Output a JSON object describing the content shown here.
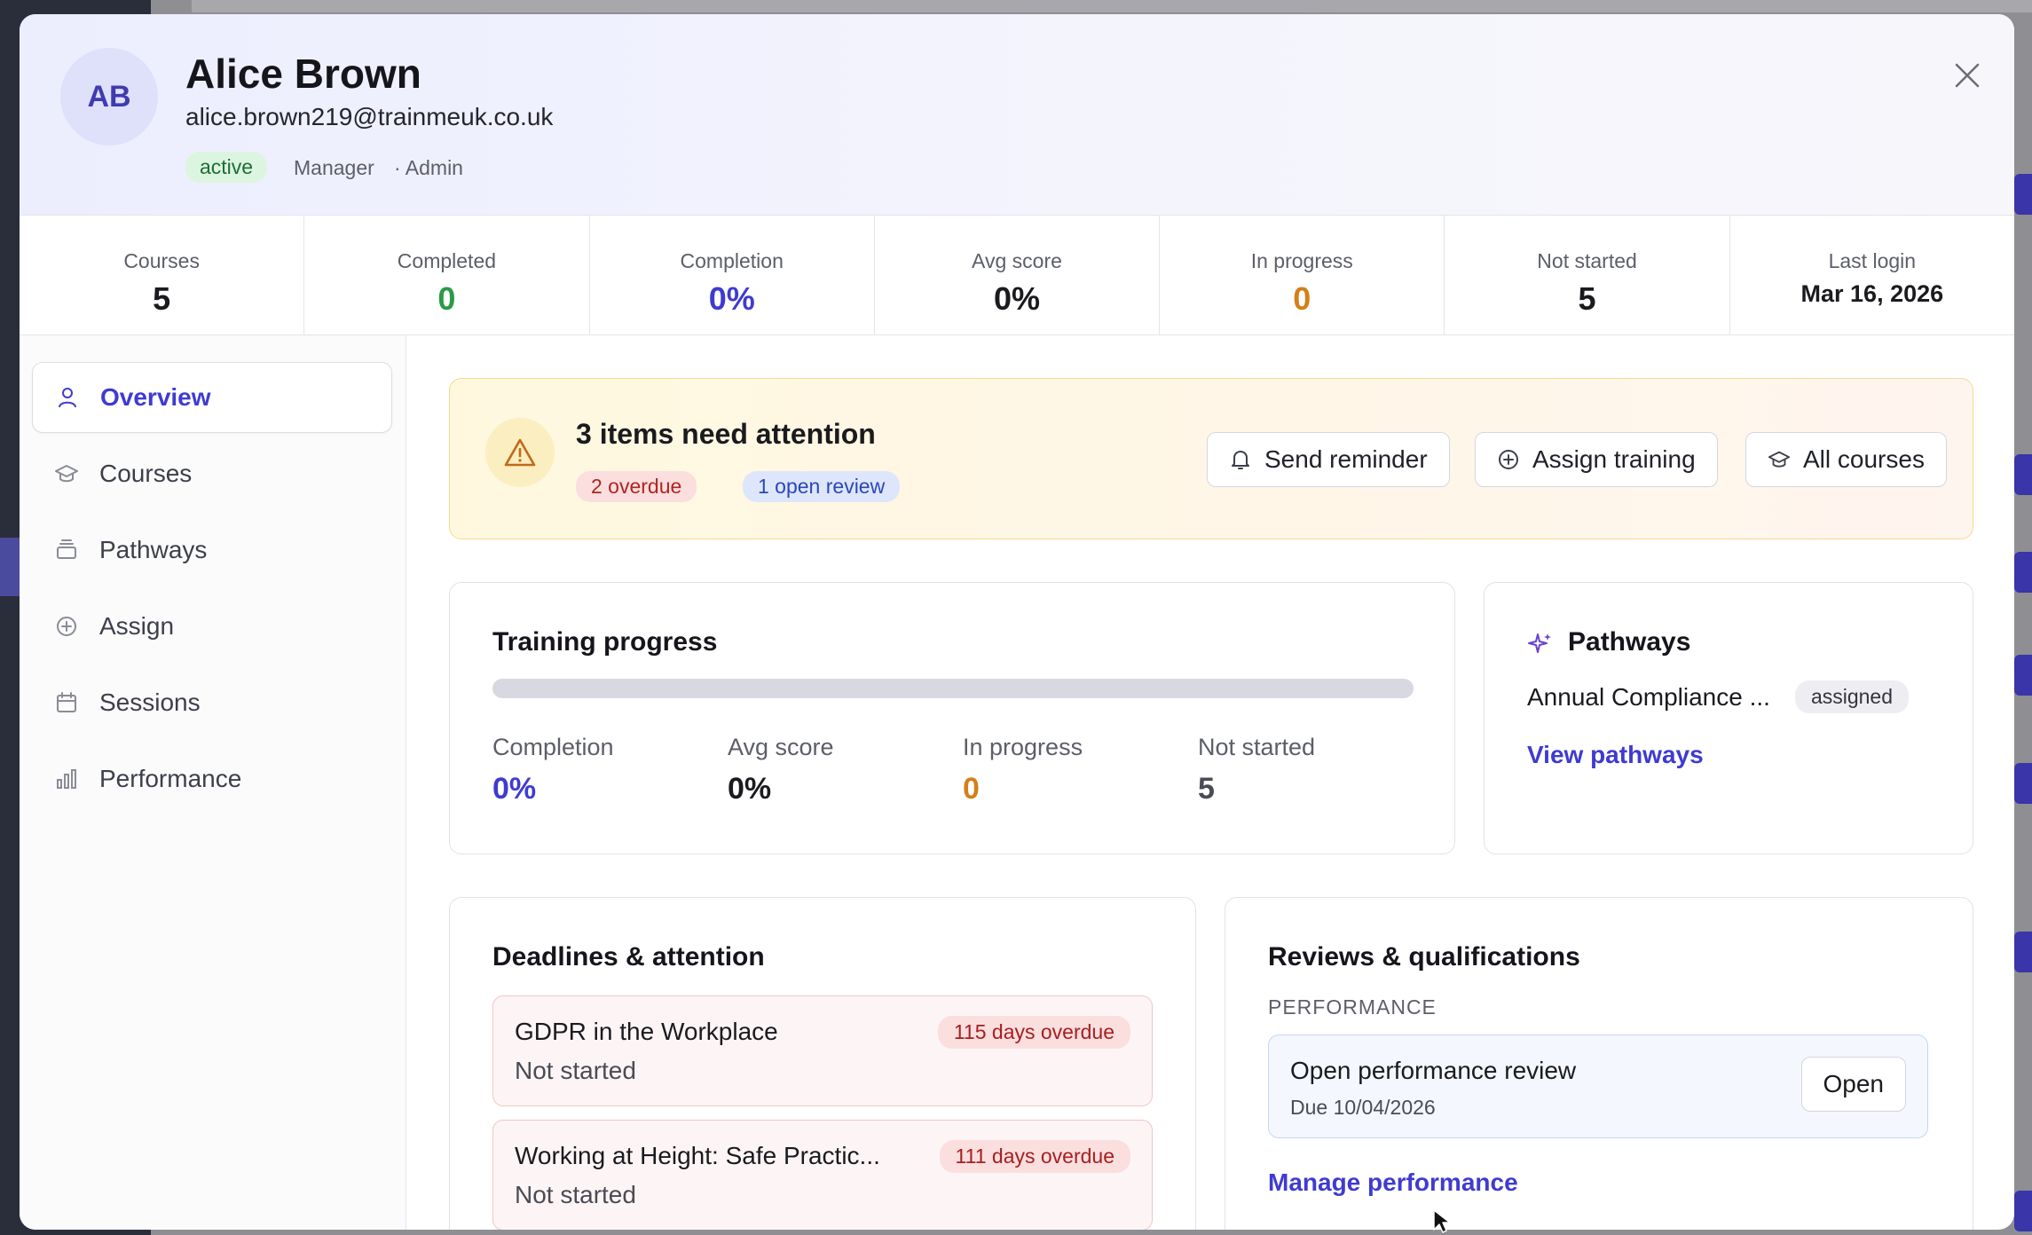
{
  "user": {
    "initials": "AB",
    "name": "Alice Brown",
    "email": "alice.brown219@trainmeuk.co.uk",
    "status": "active",
    "role": "Manager",
    "role_extra": "· Admin"
  },
  "stats": [
    {
      "label": "Courses",
      "value": "5",
      "color": "#1a1a1f"
    },
    {
      "label": "Completed",
      "value": "0",
      "color": "#2b9a45"
    },
    {
      "label": "Completion",
      "value": "0%",
      "color": "#3f3bd0"
    },
    {
      "label": "Avg score",
      "value": "0%",
      "color": "#1a1a1f"
    },
    {
      "label": "In progress",
      "value": "0",
      "color": "#d2801a"
    },
    {
      "label": "Not started",
      "value": "5",
      "color": "#1a1a1f"
    },
    {
      "label": "Last login",
      "value": "Mar 16, 2026",
      "color": "#1a1a1f"
    }
  ],
  "nav": [
    {
      "label": "Overview",
      "icon": "user-icon",
      "active": true
    },
    {
      "label": "Courses",
      "icon": "graduation-cap-icon",
      "active": false
    },
    {
      "label": "Pathways",
      "icon": "layers-icon",
      "active": false
    },
    {
      "label": "Assign",
      "icon": "plus-circle-icon",
      "active": false
    },
    {
      "label": "Sessions",
      "icon": "calendar-icon",
      "active": false
    },
    {
      "label": "Performance",
      "icon": "bar-chart-icon",
      "active": false
    }
  ],
  "attention": {
    "title": "3 items need attention",
    "chip_overdue": "2 overdue",
    "chip_review": "1 open review",
    "buttons": {
      "send_reminder": "Send reminder",
      "assign_training": "Assign training",
      "all_courses": "All courses"
    }
  },
  "training_progress": {
    "title": "Training progress",
    "progress_fraction": 0,
    "items": [
      {
        "label": "Completion",
        "value": "0%",
        "color": "#3f3bd0"
      },
      {
        "label": "Avg score",
        "value": "0%",
        "color": "#1a1a1f"
      },
      {
        "label": "In progress",
        "value": "0",
        "color": "#d2801a"
      },
      {
        "label": "Not started",
        "value": "5",
        "color": "#4a4b55"
      }
    ]
  },
  "pathways": {
    "title": "Pathways",
    "pathway_name": "Annual Compliance ...",
    "pathway_status": "assigned",
    "link": "View pathways"
  },
  "deadlines": {
    "title": "Deadlines & attention",
    "items": [
      {
        "title": "GDPR in the Workplace",
        "status": "Not started",
        "overdue": "115 days overdue"
      },
      {
        "title": "Working at Height: Safe Practic...",
        "status": "Not started",
        "overdue": "111 days overdue"
      }
    ]
  },
  "reviews": {
    "title": "Reviews & qualifications",
    "section": "PERFORMANCE",
    "review_title": "Open performance review",
    "review_due": "Due 10/04/2026",
    "open_label": "Open",
    "link": "Manage performance"
  },
  "colors": {
    "accent": "#3f3bd0",
    "green": "#2b9a45",
    "orange": "#d2801a",
    "red": "#b02424"
  }
}
